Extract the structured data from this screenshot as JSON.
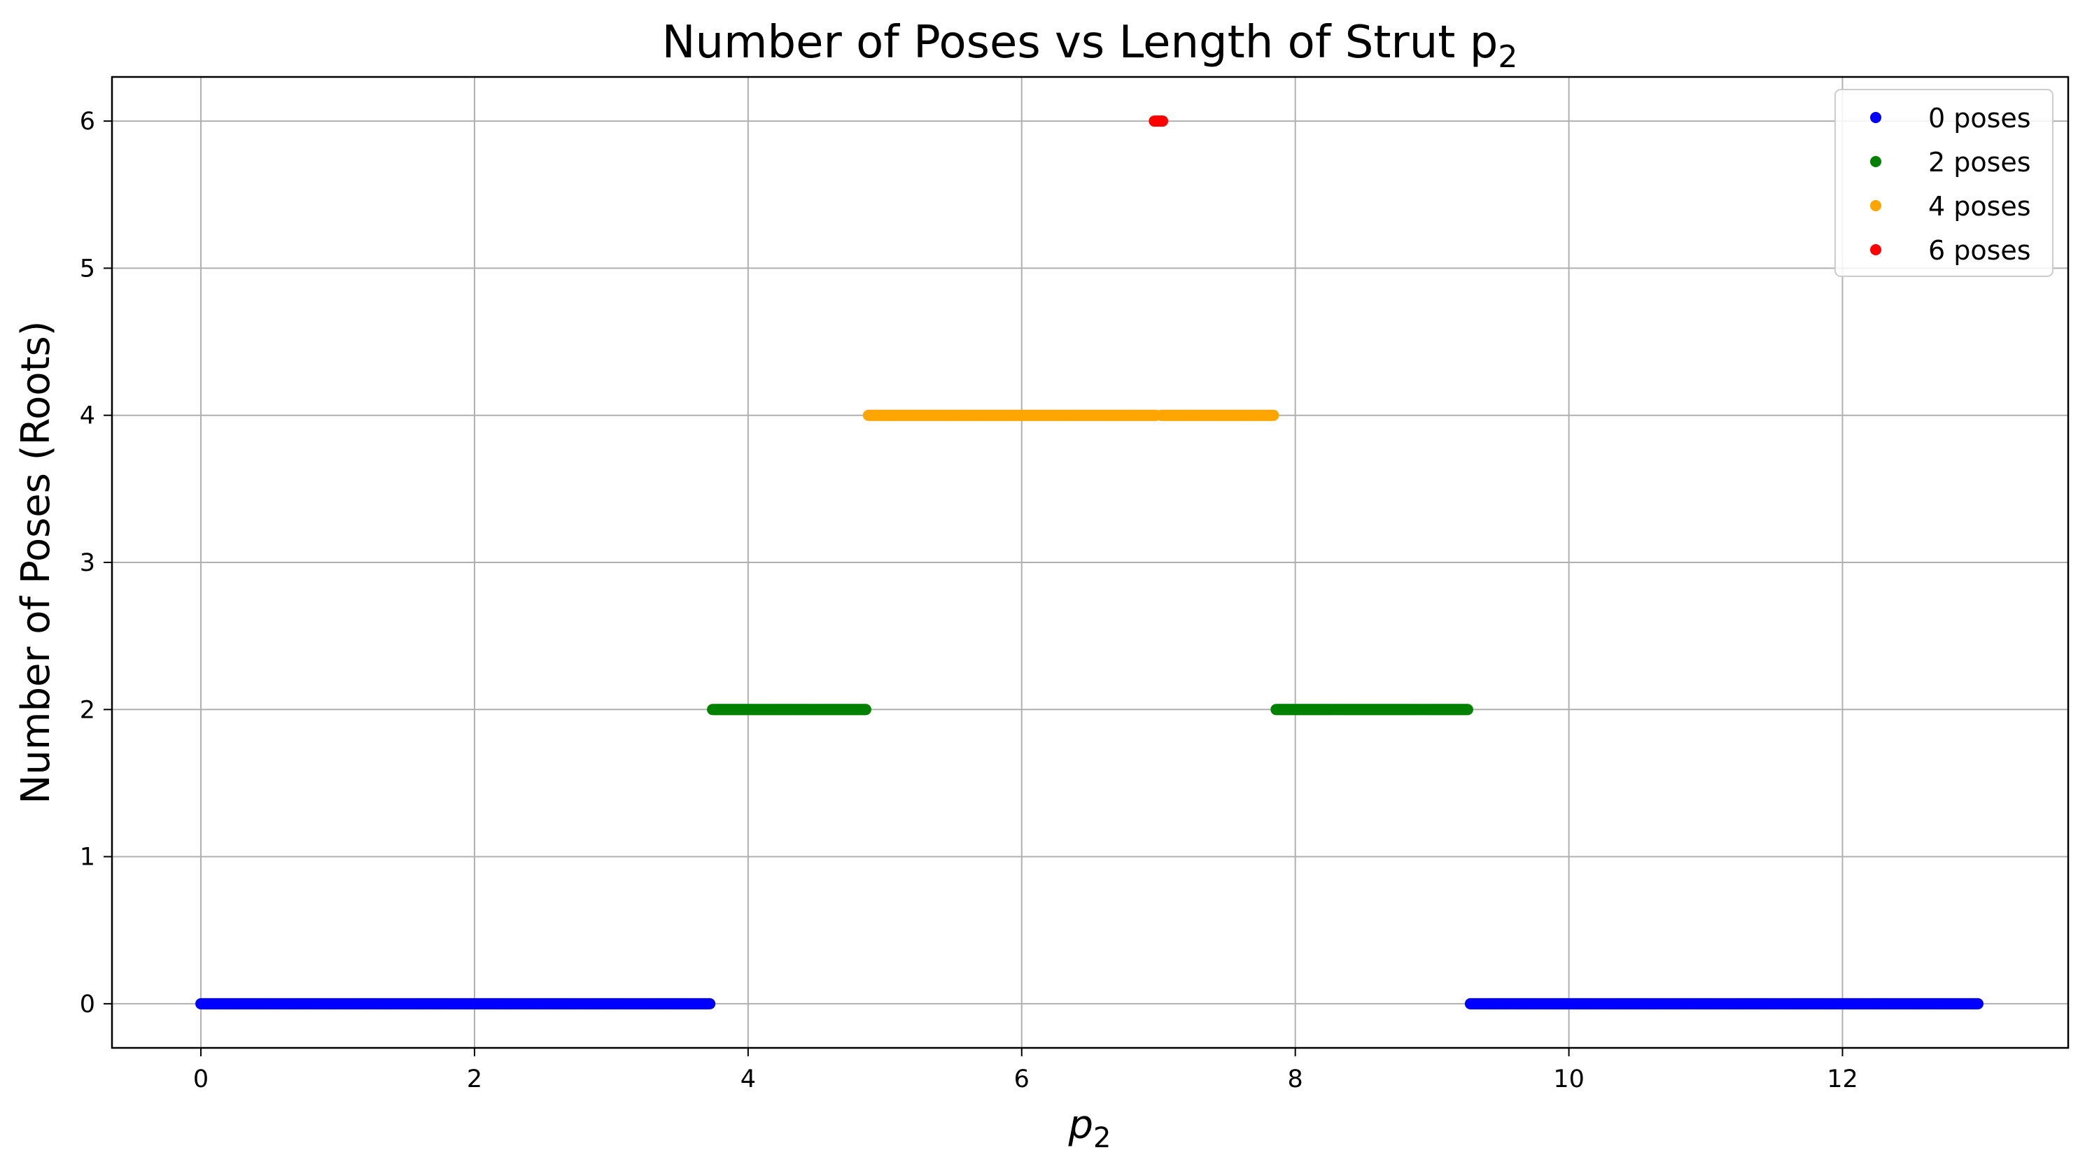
{
  "chart_data": {
    "type": "scatter",
    "title": "Number of Poses vs Length of Strut p",
    "title_sub": "2",
    "xlabel": "p",
    "xlabel_sub": "2",
    "ylabel": "Number of Poses (Roots)",
    "xlim": [
      -0.65,
      13.65
    ],
    "ylim": [
      -0.3,
      6.3
    ],
    "xticks": [
      0,
      2,
      4,
      6,
      8,
      10,
      12
    ],
    "yticks": [
      0,
      1,
      2,
      3,
      4,
      5,
      6
    ],
    "grid": true,
    "legend_position": "top-right",
    "series": [
      {
        "name": "0 poses",
        "color": "#0000ff",
        "y": 0,
        "ranges": [
          [
            0.0,
            3.72
          ],
          [
            9.28,
            12.99
          ]
        ]
      },
      {
        "name": "2 poses",
        "color": "#008000",
        "y": 2,
        "ranges": [
          [
            3.74,
            4.86
          ],
          [
            7.86,
            9.26
          ]
        ]
      },
      {
        "name": "4 poses",
        "color": "#ffa500",
        "y": 4,
        "ranges": [
          [
            4.88,
            6.98
          ],
          [
            7.02,
            7.84
          ]
        ]
      },
      {
        "name": "6 poses",
        "color": "#ff0000",
        "y": 6,
        "ranges": [
          [
            6.97,
            7.03
          ]
        ]
      }
    ],
    "sample_step": 0.01
  }
}
